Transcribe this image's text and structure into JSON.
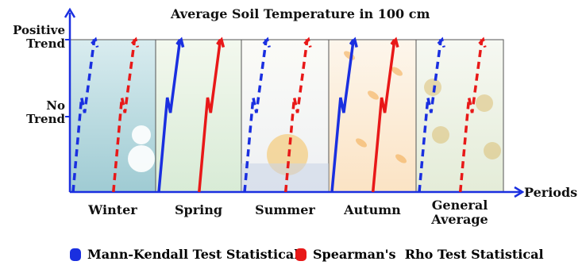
{
  "title": "Average Soil Temperature in 100 cm",
  "y_axis": {
    "positive_label": [
      "Positive",
      "Trend"
    ],
    "no_trend_label": [
      "No",
      "Trend"
    ]
  },
  "x_axis": {
    "label": "Periods"
  },
  "periods": [
    {
      "label": "Winter",
      "theme": "winter"
    },
    {
      "label": "Spring",
      "theme": "spring"
    },
    {
      "label": "Summer",
      "theme": "summer"
    },
    {
      "label": "Autumn",
      "theme": "autumn"
    },
    {
      "label": "General\nAverage",
      "theme": "general"
    }
  ],
  "series": [
    {
      "name": "Mann-Kendall Test Statistical",
      "color": "#1a2fe0",
      "styles": [
        "dashed",
        "solid",
        "dashed",
        "solid",
        "dashed"
      ]
    },
    {
      "name": "Spearman's  Rho Test Statistical",
      "color": "#e81818",
      "styles": [
        "dashed",
        "solid",
        "dashed",
        "solid",
        "dashed"
      ]
    }
  ],
  "colors": {
    "axis": "#1a2fe0",
    "panel_border": "#555555"
  }
}
